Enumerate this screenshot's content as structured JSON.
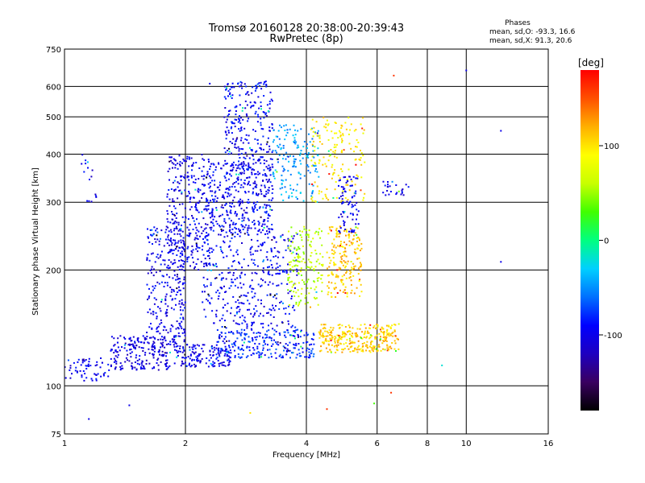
{
  "title_line1": "Tromsø 20160128 20:38:00-20:39:43",
  "title_line2": "RwPretec (8p)",
  "stats": {
    "heading": "Phases",
    "line1": "mean, sd,O: -93.3, 16.6",
    "line2": "mean, sd,X:  91.3, 20.6"
  },
  "colorbar": {
    "unit_label": "[deg]",
    "ticks": [
      {
        "value": 100,
        "label": "100"
      },
      {
        "value": 0,
        "label": "0"
      },
      {
        "value": -100,
        "label": "-100"
      }
    ],
    "range": [
      -180,
      180
    ],
    "colormap": [
      "#000000",
      "#3a0060",
      "#1e00c0",
      "#0000ff",
      "#0070ff",
      "#00d0ff",
      "#00ff80",
      "#40ff00",
      "#c8ff00",
      "#ffff00",
      "#ffb000",
      "#ff5000",
      "#ff0000"
    ]
  },
  "chart_data": {
    "type": "scatter",
    "title": "Tromsø 20160128 20:38:00-20:39:43",
    "subtitle": "RwPretec (8p)",
    "xlabel": "Frequency [MHz]",
    "ylabel": "Stationary phase Virtual Height [km]",
    "xscale": "log",
    "yscale": "log",
    "xlim": [
      1,
      16
    ],
    "ylim": [
      75,
      750
    ],
    "xticks": [
      1,
      2,
      4,
      6,
      16
    ],
    "xtick_labels": [
      "1",
      "2",
      "4",
      "6",
      "16"
    ],
    "xgrid_extra": [
      8,
      10
    ],
    "xgrid_extra_labels": [
      "8",
      "10"
    ],
    "yticks": [
      75,
      100,
      200,
      300,
      400,
      500,
      600,
      750
    ],
    "ytick_labels": [
      "75",
      "100",
      "200",
      "300",
      "400",
      "500",
      "600",
      "750"
    ],
    "grid": true,
    "color_variable": "Phase [deg]",
    "clusters": [
      {
        "f_range": [
          1.0,
          1.3
        ],
        "h_range": [
          103,
          118
        ],
        "phase": -100,
        "n": 60
      },
      {
        "f_range": [
          1.3,
          1.9
        ],
        "h_range": [
          110,
          135
        ],
        "phase": -105,
        "n": 220
      },
      {
        "f_range": [
          1.9,
          2.6
        ],
        "h_range": [
          112,
          128
        ],
        "phase": -100,
        "n": 140
      },
      {
        "f_range": [
          1.6,
          2.0
        ],
        "h_range": [
          130,
          260
        ],
        "phase": -100,
        "n": 260
      },
      {
        "f_range": [
          1.8,
          2.3
        ],
        "h_range": [
          200,
          400
        ],
        "phase": -100,
        "n": 320
      },
      {
        "f_range": [
          2.3,
          3.3
        ],
        "h_range": [
          250,
          380
        ],
        "phase": -95,
        "n": 380
      },
      {
        "f_range": [
          2.5,
          3.3
        ],
        "h_range": [
          360,
          620
        ],
        "phase": -95,
        "n": 260
      },
      {
        "f_range": [
          2.2,
          3.8
        ],
        "h_range": [
          140,
          250
        ],
        "phase": -95,
        "n": 380
      },
      {
        "f_range": [
          2.4,
          4.2
        ],
        "h_range": [
          118,
          140
        ],
        "phase": -80,
        "n": 260
      },
      {
        "f_range": [
          3.3,
          4.3
        ],
        "h_range": [
          300,
          480
        ],
        "phase": -45,
        "n": 160
      },
      {
        "f_range": [
          3.6,
          4.4
        ],
        "h_range": [
          160,
          260
        ],
        "phase": 60,
        "n": 160
      },
      {
        "f_range": [
          4.3,
          6.8
        ],
        "h_range": [
          122,
          145
        ],
        "phase": 110,
        "n": 300
      },
      {
        "f_range": [
          4.5,
          5.5
        ],
        "h_range": [
          170,
          260
        ],
        "phase": 110,
        "n": 200
      },
      {
        "f_range": [
          4.1,
          5.6
        ],
        "h_range": [
          300,
          500
        ],
        "phase": 95,
        "n": 160
      },
      {
        "f_range": [
          4.8,
          5.4
        ],
        "h_range": [
          250,
          350
        ],
        "phase": -100,
        "n": 80
      },
      {
        "f_range": [
          6.2,
          7.2
        ],
        "h_range": [
          310,
          340
        ],
        "phase": -100,
        "n": 24
      },
      {
        "f_range": [
          1.1,
          1.2
        ],
        "h_range": [
          300,
          400
        ],
        "phase": -100,
        "n": 16
      }
    ],
    "points": [
      {
        "f": 1.15,
        "h": 82,
        "phase": -100
      },
      {
        "f": 1.45,
        "h": 89,
        "phase": -100
      },
      {
        "f": 2.9,
        "h": 85,
        "phase": 100
      },
      {
        "f": 4.5,
        "h": 87,
        "phase": 160
      },
      {
        "f": 5.9,
        "h": 90,
        "phase": 30
      },
      {
        "f": 6.5,
        "h": 96,
        "phase": 160
      },
      {
        "f": 8.7,
        "h": 113,
        "phase": -20
      },
      {
        "f": 10.0,
        "h": 660,
        "phase": -100
      },
      {
        "f": 12.2,
        "h": 460,
        "phase": -100
      },
      {
        "f": 12.2,
        "h": 210,
        "phase": -100
      },
      {
        "f": 6.6,
        "h": 640,
        "phase": 160
      },
      {
        "f": 2.3,
        "h": 610,
        "phase": -100
      },
      {
        "f": 6.8,
        "h": 320,
        "phase": 40
      }
    ]
  }
}
